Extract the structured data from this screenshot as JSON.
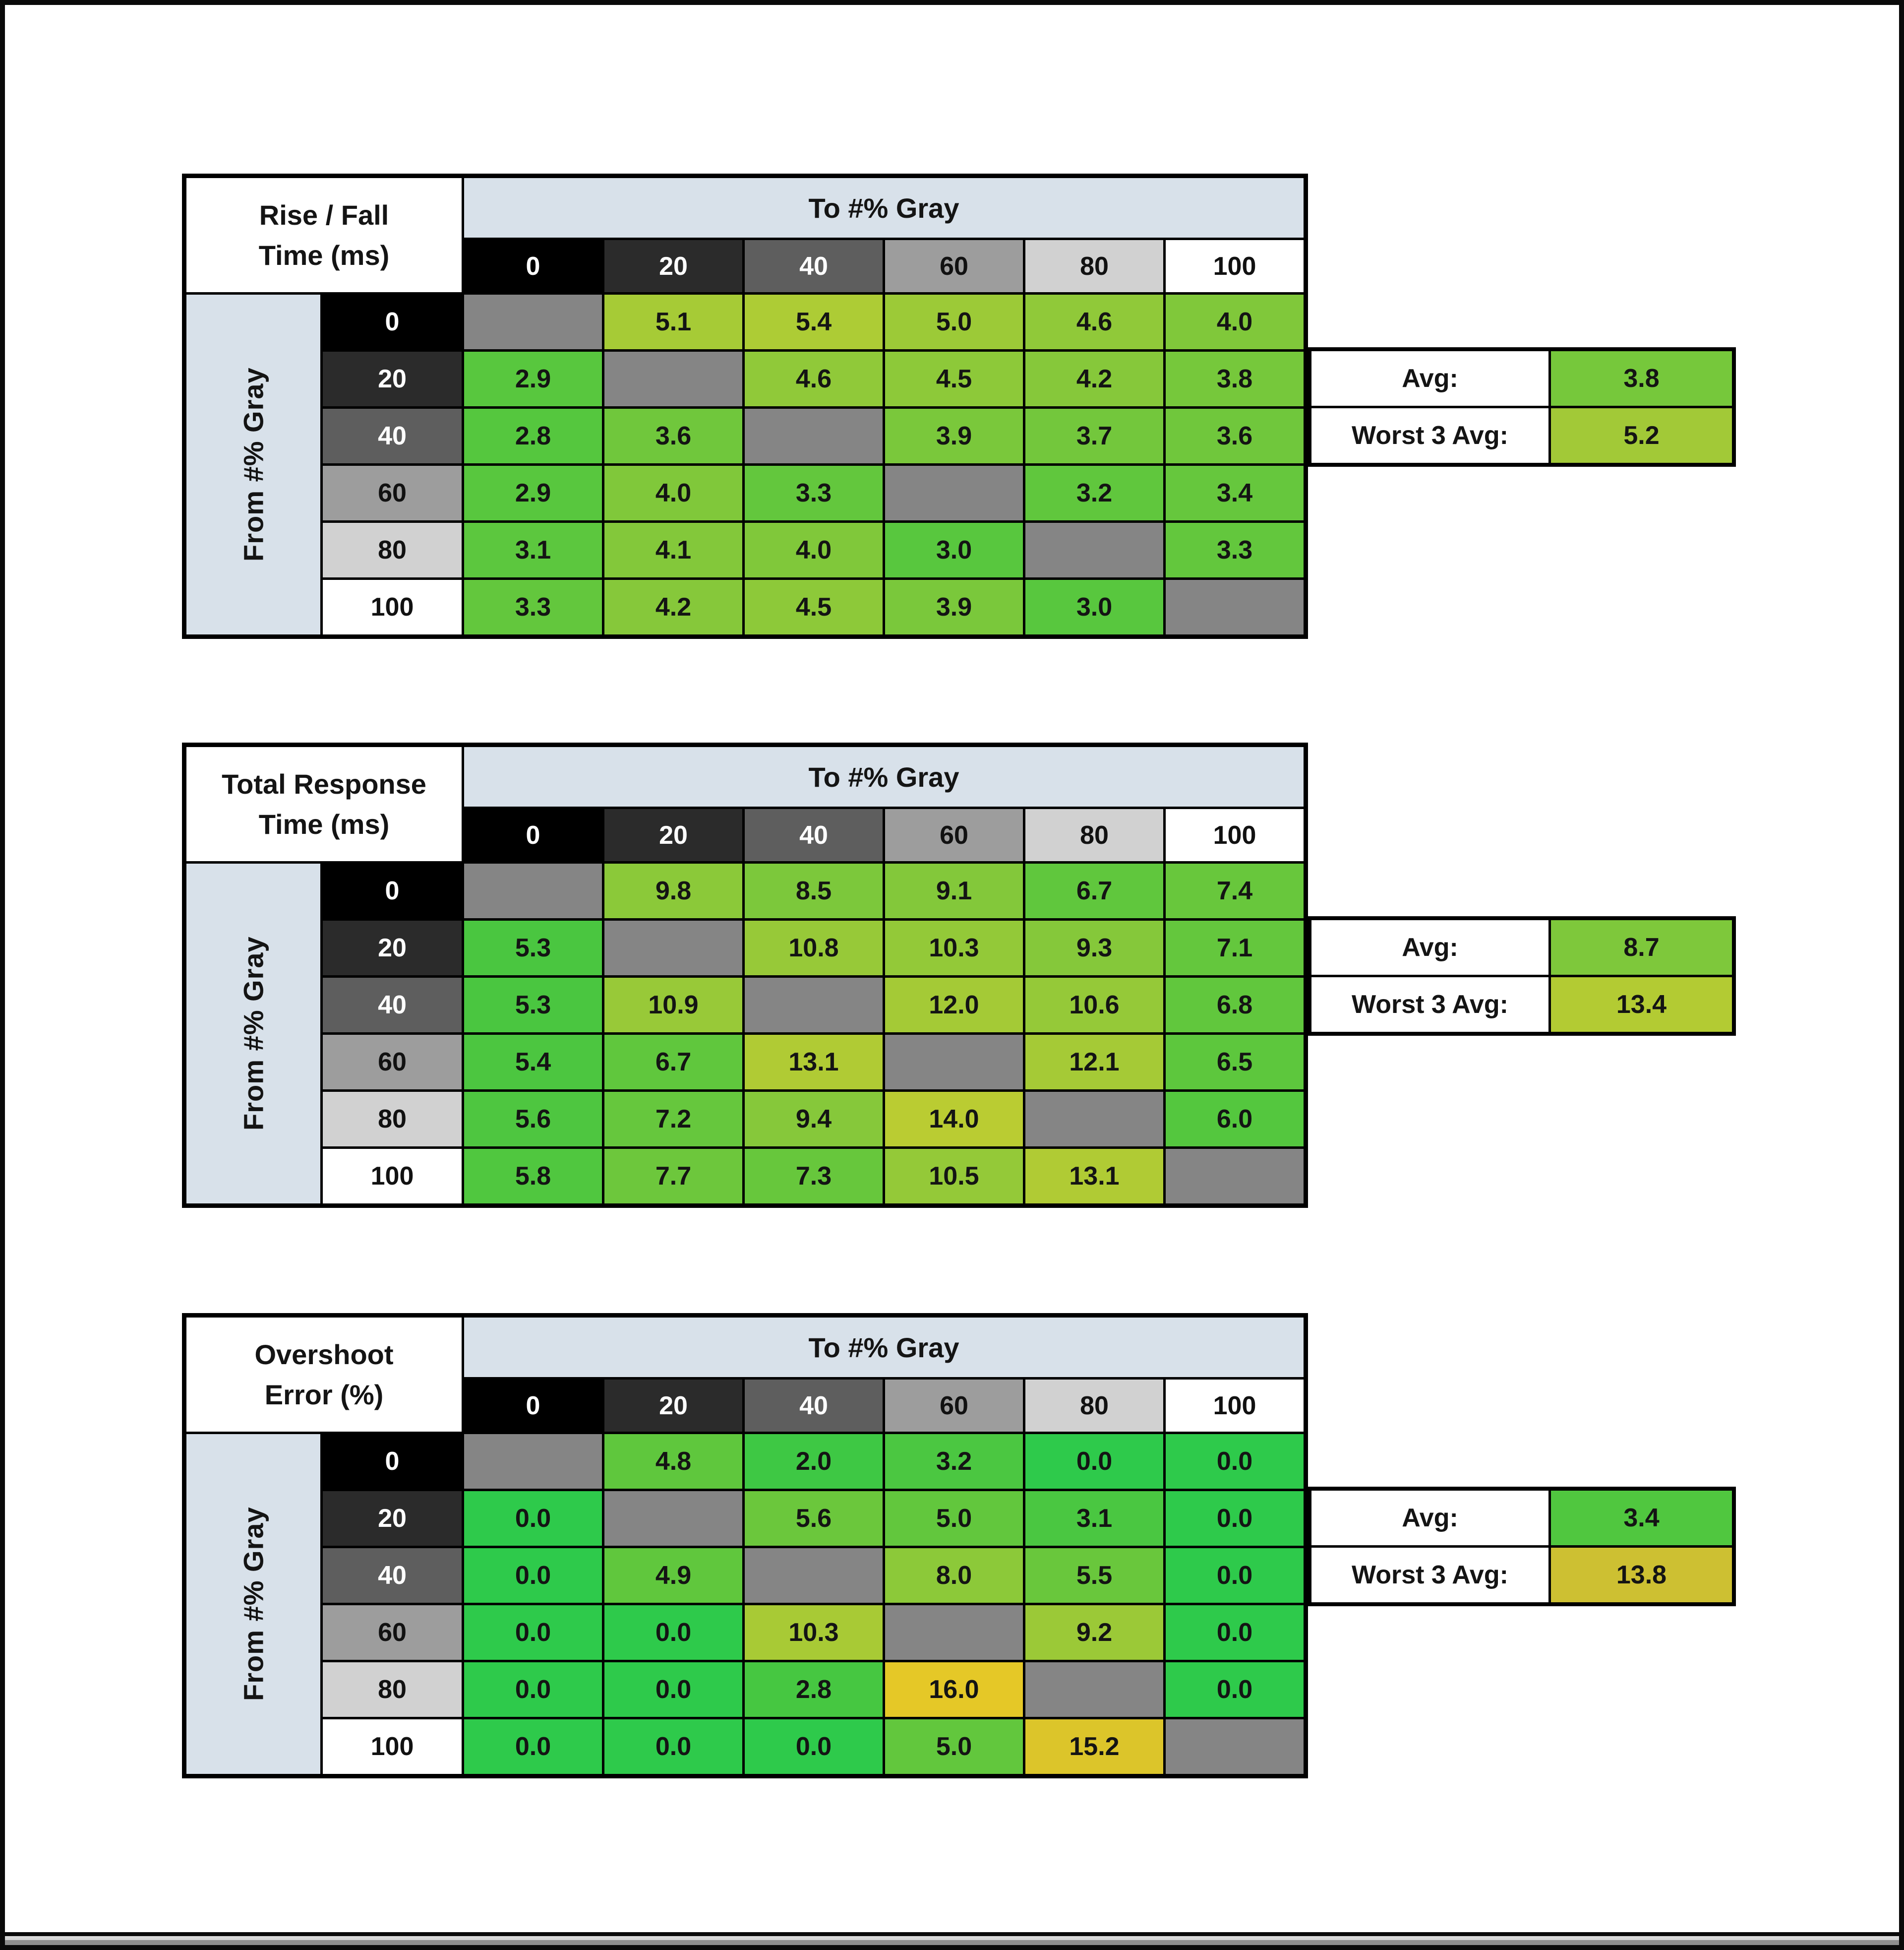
{
  "page": {
    "background": "#ffffff",
    "frame_color": "#0a0a0a"
  },
  "shared": {
    "to_label": "To #% Gray",
    "from_label": "From #% Gray",
    "col_headers": [
      "0",
      "20",
      "40",
      "60",
      "80",
      "100"
    ],
    "row_headers": [
      "0",
      "20",
      "40",
      "60",
      "80",
      "100"
    ],
    "header_bg": [
      "#000000",
      "#2b2b2b",
      "#5e5e5e",
      "#9d9d9d",
      "#d1d1d1",
      "#ffffff"
    ],
    "header_fg": [
      "#ffffff",
      "#ffffff",
      "#ffffff",
      "#111111",
      "#111111",
      "#111111"
    ],
    "diagonal_color": "#858585",
    "band_color": "#d8e1ea",
    "avg_label": "Avg:",
    "worst3_label": "Worst 3 Avg:"
  },
  "tables": [
    {
      "id": "rise-fall",
      "title_line1": "Rise / Fall",
      "title_line2": "Time (ms)",
      "cells": [
        [
          null,
          "5.1",
          "5.4",
          "5.0",
          "4.6",
          "4.0"
        ],
        [
          "2.9",
          null,
          "4.6",
          "4.5",
          "4.2",
          "3.8"
        ],
        [
          "2.8",
          "3.6",
          null,
          "3.9",
          "3.7",
          "3.6"
        ],
        [
          "2.9",
          "4.0",
          "3.3",
          null,
          "3.2",
          "3.4"
        ],
        [
          "3.1",
          "4.1",
          "4.0",
          "3.0",
          null,
          "3.3"
        ],
        [
          "3.3",
          "4.2",
          "4.5",
          "3.9",
          "3.0",
          null
        ]
      ],
      "cell_colors": [
        [
          null,
          "#a6cb36",
          "#adcc35",
          "#9cca37",
          "#90c939",
          "#80c83a"
        ],
        [
          "#58c73e",
          null,
          "#90c939",
          "#8dc939",
          "#86c83a",
          "#76c83b"
        ],
        [
          "#55c73e",
          "#70c73c",
          null,
          "#7ac83b",
          "#73c73c",
          "#70c73c"
        ],
        [
          "#58c73e",
          "#80c83a",
          "#63c73d",
          null,
          "#60c73d",
          "#66c73d"
        ],
        [
          "#5cc73e",
          "#83c83a",
          "#80c83a",
          "#58c73e",
          null,
          "#63c73d"
        ],
        [
          "#63c73d",
          "#86c83a",
          "#8dc939",
          "#7ac83b",
          "#58c73e",
          null
        ]
      ],
      "avg_value": "3.8",
      "avg_color": "#76c83b",
      "worst3_value": "5.2",
      "worst3_color": "#a2c937"
    },
    {
      "id": "total-response",
      "title_line1": "Total Response",
      "title_line2": "Time (ms)",
      "cells": [
        [
          null,
          "9.8",
          "8.5",
          "9.1",
          "6.7",
          "7.4"
        ],
        [
          "5.3",
          null,
          "10.8",
          "10.3",
          "9.3",
          "7.1"
        ],
        [
          "5.3",
          "10.9",
          null,
          "12.0",
          "10.6",
          "6.8"
        ],
        [
          "5.4",
          "6.7",
          "13.1",
          null,
          "12.1",
          "6.5"
        ],
        [
          "5.6",
          "7.2",
          "9.4",
          "14.0",
          null,
          "6.0"
        ],
        [
          "5.8",
          "7.7",
          "7.3",
          "10.5",
          "13.1",
          null
        ]
      ],
      "cell_colors": [
        [
          null,
          "#8bc939",
          "#7cc83b",
          "#83c83a",
          "#60c73d",
          "#68c73c"
        ],
        [
          "#4ac640",
          null,
          "#97c938",
          "#93c938",
          "#85c83a",
          "#64c73d"
        ],
        [
          "#4ac640",
          "#98c938",
          null,
          "#a4ca36",
          "#95c938",
          "#61c73d"
        ],
        [
          "#4cc640",
          "#60c73d",
          "#b0cb34",
          null,
          "#a5ca36",
          "#5dc73d"
        ],
        [
          "#4ec640",
          "#66c73d",
          "#86c83a",
          "#bacc32",
          null,
          "#54c73e"
        ],
        [
          "#50c73f",
          "#6dc73c",
          "#67c73c",
          "#94c938",
          "#b0cb34",
          null
        ]
      ],
      "avg_value": "8.7",
      "avg_color": "#7ec83b",
      "worst3_value": "13.4",
      "worst3_color": "#b3cb33"
    },
    {
      "id": "overshoot",
      "title_line1": "Overshoot",
      "title_line2": "Error (%)",
      "cells": [
        [
          null,
          "4.8",
          "2.0",
          "3.2",
          "0.0",
          "0.0"
        ],
        [
          "0.0",
          null,
          "5.6",
          "5.0",
          "3.1",
          "0.0"
        ],
        [
          "0.0",
          "4.9",
          null,
          "8.0",
          "5.5",
          "0.0"
        ],
        [
          "0.0",
          "0.0",
          "10.3",
          null,
          "9.2",
          "0.0"
        ],
        [
          "0.0",
          "0.0",
          "2.8",
          "16.0",
          null,
          "0.0"
        ],
        [
          "0.0",
          "0.0",
          "0.0",
          "5.0",
          "15.2",
          null
        ]
      ],
      "cell_colors": [
        [
          null,
          "#5fc73d",
          "#3ec844",
          "#4bc741",
          "#2eca4b",
          "#2eca4b"
        ],
        [
          "#2eca4b",
          null,
          "#6bc73c",
          "#62c73d",
          "#4ac741",
          "#2eca4b"
        ],
        [
          "#2eca4b",
          "#60c73d",
          null,
          "#8cc939",
          "#69c73c",
          "#2eca4b"
        ],
        [
          "#2eca4b",
          "#2eca4b",
          "#a8ca35",
          null,
          "#9bc937",
          "#2eca4b"
        ],
        [
          "#2eca4b",
          "#2eca4b",
          "#46c741",
          "#e5c827",
          null,
          "#2eca4b"
        ],
        [
          "#2eca4b",
          "#2eca4b",
          "#2eca4b",
          "#62c73d",
          "#dcc52a",
          null
        ]
      ],
      "avg_value": "3.4",
      "avg_color": "#50c73f",
      "worst3_value": "13.8",
      "worst3_color": "#cdc032"
    }
  ],
  "chart_data": [
    {
      "type": "heatmap",
      "title": "Rise / Fall Time (ms)",
      "xlabel": "To #% Gray",
      "ylabel": "From #% Gray",
      "x_categories": [
        0,
        20,
        40,
        60,
        80,
        100
      ],
      "y_categories": [
        0,
        20,
        40,
        60,
        80,
        100
      ],
      "matrix": [
        [
          null,
          5.1,
          5.4,
          5.0,
          4.6,
          4.0
        ],
        [
          2.9,
          null,
          4.6,
          4.5,
          4.2,
          3.8
        ],
        [
          2.8,
          3.6,
          null,
          3.9,
          3.7,
          3.6
        ],
        [
          2.9,
          4.0,
          3.3,
          null,
          3.2,
          3.4
        ],
        [
          3.1,
          4.1,
          4.0,
          3.0,
          null,
          3.3
        ],
        [
          3.3,
          4.2,
          4.5,
          3.9,
          3.0,
          null
        ]
      ],
      "avg": 3.8,
      "worst_3_avg": 5.2,
      "color_scale": "green (fast) to yellow (slow)"
    },
    {
      "type": "heatmap",
      "title": "Total Response Time (ms)",
      "xlabel": "To #% Gray",
      "ylabel": "From #% Gray",
      "x_categories": [
        0,
        20,
        40,
        60,
        80,
        100
      ],
      "y_categories": [
        0,
        20,
        40,
        60,
        80,
        100
      ],
      "matrix": [
        [
          null,
          9.8,
          8.5,
          9.1,
          6.7,
          7.4
        ],
        [
          5.3,
          null,
          10.8,
          10.3,
          9.3,
          7.1
        ],
        [
          5.3,
          10.9,
          null,
          12.0,
          10.6,
          6.8
        ],
        [
          5.4,
          6.7,
          13.1,
          null,
          12.1,
          6.5
        ],
        [
          5.6,
          7.2,
          9.4,
          14.0,
          null,
          6.0
        ],
        [
          5.8,
          7.7,
          7.3,
          10.5,
          13.1,
          null
        ]
      ],
      "avg": 8.7,
      "worst_3_avg": 13.4,
      "color_scale": "green (fast) to yellow (slow)"
    },
    {
      "type": "heatmap",
      "title": "Overshoot Error (%)",
      "xlabel": "To #% Gray",
      "ylabel": "From #% Gray",
      "x_categories": [
        0,
        20,
        40,
        60,
        80,
        100
      ],
      "y_categories": [
        0,
        20,
        40,
        60,
        80,
        100
      ],
      "matrix": [
        [
          null,
          4.8,
          2.0,
          3.2,
          0.0,
          0.0
        ],
        [
          0.0,
          null,
          5.6,
          5.0,
          3.1,
          0.0
        ],
        [
          0.0,
          4.9,
          null,
          8.0,
          5.5,
          0.0
        ],
        [
          0.0,
          0.0,
          10.3,
          null,
          9.2,
          0.0
        ],
        [
          0.0,
          0.0,
          2.8,
          16.0,
          null,
          0.0
        ],
        [
          0.0,
          0.0,
          0.0,
          5.0,
          15.2,
          null
        ]
      ],
      "avg": 3.4,
      "worst_3_avg": 13.8,
      "color_scale": "green (none) to yellow (high)"
    }
  ]
}
